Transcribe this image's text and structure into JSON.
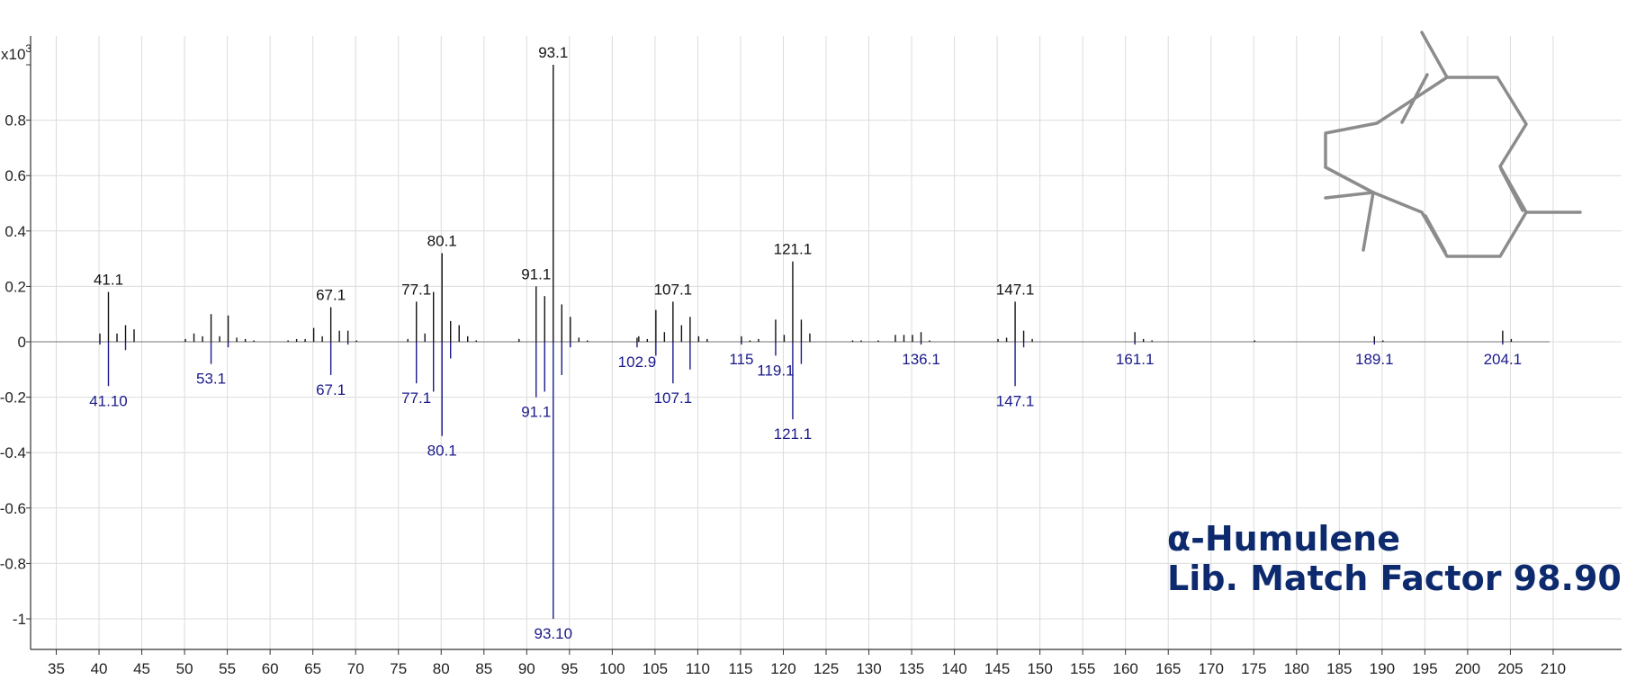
{
  "chart_data": {
    "type": "mass-spectrum-mirror",
    "y_multiplier_label": "x10",
    "y_multiplier_exp": "3",
    "xlim": [
      32,
      218
    ],
    "ylim": [
      -1.08,
      1.03
    ],
    "x_ticks": [
      35,
      40,
      45,
      50,
      55,
      60,
      65,
      70,
      75,
      80,
      85,
      90,
      95,
      100,
      105,
      110,
      115,
      120,
      125,
      130,
      135,
      140,
      145,
      150,
      155,
      160,
      165,
      170,
      175,
      180,
      185,
      190,
      195,
      200,
      205,
      210
    ],
    "y_ticks": [
      {
        "v": 0.8,
        "label": "0.8"
      },
      {
        "v": 0.6,
        "label": "0.6"
      },
      {
        "v": 0.4,
        "label": "0.4"
      },
      {
        "v": 0.2,
        "label": "0.2"
      },
      {
        "v": 0,
        "label": "0"
      },
      {
        "v": -0.2,
        "label": "-0.2"
      },
      {
        "v": -0.4,
        "label": "-0.4"
      },
      {
        "v": -0.6,
        "label": "-0.6"
      },
      {
        "v": -0.8,
        "label": "-0.8"
      },
      {
        "v": -1,
        "label": "-1"
      }
    ],
    "series": [
      {
        "name": "",
        "color": "#111111",
        "direction": "up",
        "peaks": [
          [
            40.1,
            0.03
          ],
          [
            41.1,
            0.18
          ],
          [
            42.1,
            0.03
          ],
          [
            43.1,
            0.06
          ],
          [
            44.1,
            0.045
          ],
          [
            50.1,
            0.01
          ],
          [
            51.1,
            0.03
          ],
          [
            52.1,
            0.02
          ],
          [
            53.1,
            0.1
          ],
          [
            54.1,
            0.02
          ],
          [
            55.1,
            0.095
          ],
          [
            56.1,
            0.015
          ],
          [
            57.1,
            0.01
          ],
          [
            58.1,
            0.005
          ],
          [
            62.1,
            0.005
          ],
          [
            63.1,
            0.01
          ],
          [
            64.1,
            0.01
          ],
          [
            65.1,
            0.05
          ],
          [
            66.1,
            0.02
          ],
          [
            67.1,
            0.125
          ],
          [
            68.1,
            0.04
          ],
          [
            69.1,
            0.04
          ],
          [
            70.1,
            0.005
          ],
          [
            76.1,
            0.01
          ],
          [
            77.1,
            0.145
          ],
          [
            78.1,
            0.03
          ],
          [
            79.1,
            0.18
          ],
          [
            80.1,
            0.32
          ],
          [
            81.1,
            0.075
          ],
          [
            82.1,
            0.06
          ],
          [
            83.1,
            0.02
          ],
          [
            84.1,
            0.005
          ],
          [
            89.1,
            0.01
          ],
          [
            91.1,
            0.2
          ],
          [
            92.1,
            0.165
          ],
          [
            93.1,
            1.0
          ],
          [
            94.1,
            0.135
          ],
          [
            95.1,
            0.09
          ],
          [
            96.1,
            0.015
          ],
          [
            97.1,
            0.005
          ],
          [
            102.9,
            0.015
          ],
          [
            103.1,
            0.02
          ],
          [
            104.1,
            0.01
          ],
          [
            105.1,
            0.115
          ],
          [
            106.1,
            0.035
          ],
          [
            107.1,
            0.145
          ],
          [
            108.1,
            0.06
          ],
          [
            109.1,
            0.09
          ],
          [
            110.1,
            0.02
          ],
          [
            111.1,
            0.01
          ],
          [
            115.1,
            0.02
          ],
          [
            116.1,
            0.005
          ],
          [
            117.1,
            0.01
          ],
          [
            119.1,
            0.08
          ],
          [
            120.1,
            0.025
          ],
          [
            121.1,
            0.29
          ],
          [
            122.1,
            0.08
          ],
          [
            123.1,
            0.03
          ],
          [
            128.1,
            0.005
          ],
          [
            129.1,
            0.005
          ],
          [
            131.1,
            0.005
          ],
          [
            133.1,
            0.025
          ],
          [
            134.1,
            0.025
          ],
          [
            135.1,
            0.025
          ],
          [
            136.1,
            0.035
          ],
          [
            137.1,
            0.005
          ],
          [
            145.1,
            0.01
          ],
          [
            146.1,
            0.015
          ],
          [
            147.1,
            0.145
          ],
          [
            148.1,
            0.04
          ],
          [
            149.1,
            0.01
          ],
          [
            161.1,
            0.035
          ],
          [
            162.1,
            0.01
          ],
          [
            163.1,
            0.005
          ],
          [
            175.1,
            0.005
          ],
          [
            189.1,
            0.02
          ],
          [
            190.1,
            0.005
          ],
          [
            204.1,
            0.04
          ],
          [
            205.1,
            0.01
          ]
        ],
        "labels": [
          {
            "mz": 41.1,
            "text": "41.1"
          },
          {
            "mz": 67.1,
            "text": "67.1"
          },
          {
            "mz": 77.1,
            "text": "77.1"
          },
          {
            "mz": 80.1,
            "text": "80.1"
          },
          {
            "mz": 91.1,
            "text": "91.1"
          },
          {
            "mz": 93.1,
            "text": "93.1"
          },
          {
            "mz": 107.1,
            "text": "107.1"
          },
          {
            "mz": 121.1,
            "text": "121.1"
          },
          {
            "mz": 147.1,
            "text": "147.1"
          }
        ]
      },
      {
        "name": "",
        "color": "#1a1a8c",
        "direction": "down",
        "peaks": [
          [
            40.1,
            0.01
          ],
          [
            41.1,
            0.16
          ],
          [
            43.1,
            0.03
          ],
          [
            53.1,
            0.08
          ],
          [
            55.1,
            0.02
          ],
          [
            67.1,
            0.12
          ],
          [
            69.1,
            0.01
          ],
          [
            77.1,
            0.15
          ],
          [
            79.1,
            0.18
          ],
          [
            80.1,
            0.34
          ],
          [
            81.1,
            0.06
          ],
          [
            91.1,
            0.2
          ],
          [
            92.1,
            0.18
          ],
          [
            93.1,
            1.0
          ],
          [
            94.1,
            0.12
          ],
          [
            95.1,
            0.02
          ],
          [
            102.9,
            0.02
          ],
          [
            105.1,
            0.05
          ],
          [
            107.1,
            0.15
          ],
          [
            109.1,
            0.1
          ],
          [
            115.1,
            0.01
          ],
          [
            119.1,
            0.05
          ],
          [
            121.1,
            0.28
          ],
          [
            122.1,
            0.08
          ],
          [
            136.1,
            0.01
          ],
          [
            147.1,
            0.16
          ],
          [
            148.1,
            0.02
          ],
          [
            161.1,
            0.01
          ],
          [
            189.1,
            0.01
          ],
          [
            204.1,
            0.01
          ]
        ],
        "labels": [
          {
            "mz": 41.1,
            "text": "41.10"
          },
          {
            "mz": 53.1,
            "text": "53.1"
          },
          {
            "mz": 67.1,
            "text": "67.1"
          },
          {
            "mz": 77.1,
            "text": "77.1"
          },
          {
            "mz": 80.1,
            "text": "80.1"
          },
          {
            "mz": 91.1,
            "text": "91.1"
          },
          {
            "mz": 93.1,
            "text": "93.10"
          },
          {
            "mz": 102.9,
            "text": "102.9"
          },
          {
            "mz": 107.1,
            "text": "107.1"
          },
          {
            "mz": 115.1,
            "text": "115"
          },
          {
            "mz": 119.1,
            "text": "119.1"
          },
          {
            "mz": 121.1,
            "text": "121.1"
          },
          {
            "mz": 136.1,
            "text": "136.1"
          },
          {
            "mz": 147.1,
            "text": "147.1"
          },
          {
            "mz": 161.1,
            "text": "161.1"
          },
          {
            "mz": 189.1,
            "text": "189.1"
          },
          {
            "mz": 204.1,
            "text": "204.1"
          }
        ]
      }
    ],
    "grid": true,
    "structure_icon": "humulene-structure-icon"
  },
  "annotation": {
    "compound_name": "α-Humulene",
    "match_text": "Lib. Match Factor 98.90"
  },
  "colors": {
    "grid": "#dcdcdc",
    "structure": "#8c8c8c",
    "title": "#0d2a6e"
  }
}
